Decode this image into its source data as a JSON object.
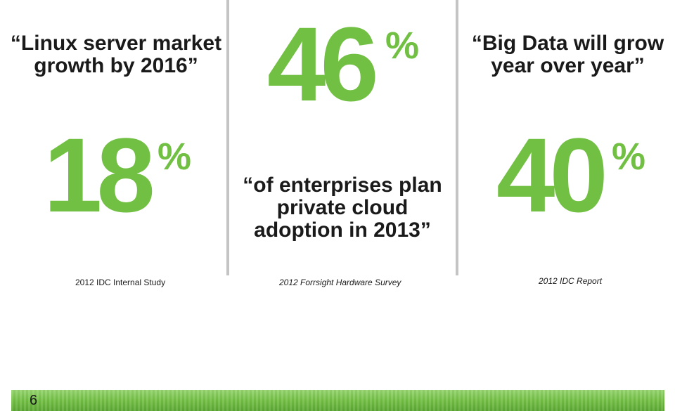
{
  "stats": [
    {
      "quote_lines": [
        "“Linux server market",
        "growth by 2016”"
      ],
      "number": "18",
      "percent": "%",
      "source": "2012 IDC Internal Study"
    },
    {
      "quote_lines": [
        "“of enterprises plan",
        "private cloud",
        "adoption in 2013”"
      ],
      "number": "46",
      "percent": "%",
      "source": "2012 Forrsight Hardware Survey"
    },
    {
      "quote_lines": [
        "“Big Data will grow",
        "year over year”"
      ],
      "number": "40",
      "percent": "%",
      "source": "2012 IDC Report"
    }
  ],
  "footer": {
    "page_number": "6"
  },
  "colors": {
    "accent": "#72c043",
    "divider": "#c4c4c4",
    "text": "#1a1a1a"
  }
}
